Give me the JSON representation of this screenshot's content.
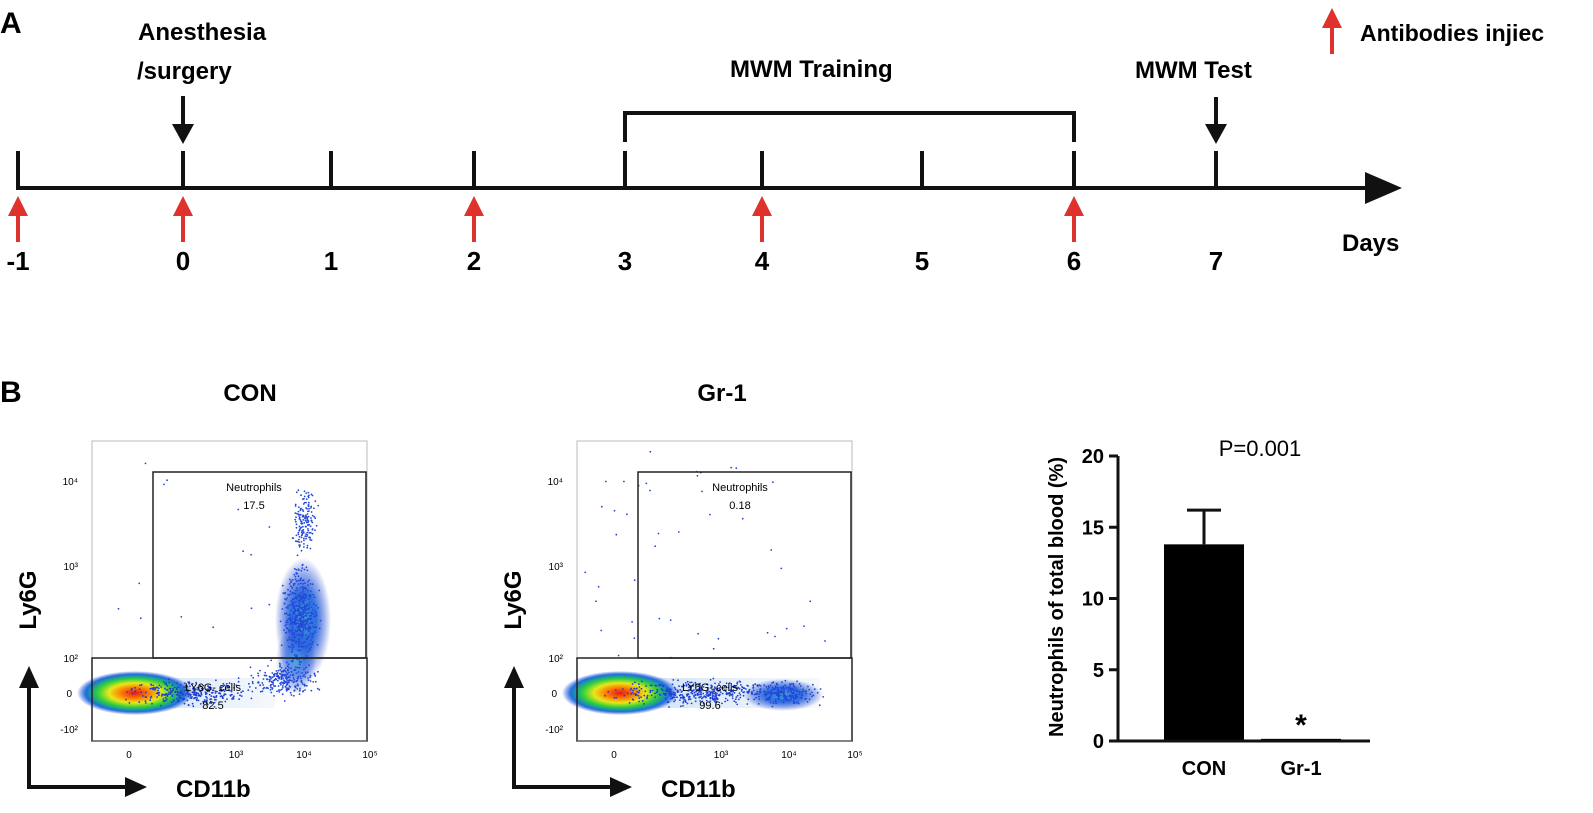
{
  "panel_a": {
    "label": "A",
    "events": {
      "anesthesia_line1": "Anesthesia",
      "anesthesia_line2": "/surgery",
      "training": "MWM Training",
      "test": "MWM Test"
    },
    "legend_label": "Antibodies injiec",
    "axis_label": "Days",
    "days": [
      "-1",
      "0",
      "1",
      "2",
      "3",
      "4",
      "5",
      "6",
      "7"
    ],
    "injection_days": [
      "-1",
      "0",
      "2",
      "4",
      "6"
    ],
    "colors": {
      "injection_arrow": "#e0322c",
      "axis": "#111111"
    }
  },
  "panel_b": {
    "label": "B",
    "flow_plots": [
      {
        "title": "CON",
        "gate_high": {
          "name": "Neutrophils",
          "value": "17.5"
        },
        "gate_low": {
          "name": "LY6G- cells",
          "value": "82.5"
        },
        "y_ticks": [
          "10⁴",
          "10³",
          "10²",
          "0",
          "-10²"
        ],
        "x_ticks": [
          "0",
          "10³",
          "10⁴",
          "10⁵"
        ],
        "y_label": "Ly6G",
        "x_label": "CD11b"
      },
      {
        "title": "Gr-1",
        "gate_high": {
          "name": "Neutrophils",
          "value": "0.18"
        },
        "gate_low": {
          "name": "LY6G- cells",
          "value": "99.6"
        },
        "y_ticks": [
          "10⁴",
          "10³",
          "10²",
          "0",
          "-10²"
        ],
        "x_ticks": [
          "0",
          "10³",
          "10⁴",
          "10⁵"
        ],
        "y_label": "Ly6G",
        "x_label": "CD11b"
      }
    ],
    "chart_data": {
      "type": "bar",
      "categories": [
        "CON",
        "Gr-1"
      ],
      "values": [
        13.8,
        0.15
      ],
      "errors": [
        2.4,
        0
      ],
      "ylabel": "Neutrophils of total blood (%)",
      "yticks": [
        0,
        5,
        10,
        15,
        20
      ],
      "ylim": [
        0,
        20
      ],
      "annotation": "P=0.001",
      "significance_marker": "*",
      "bar_color": "#000000"
    }
  }
}
